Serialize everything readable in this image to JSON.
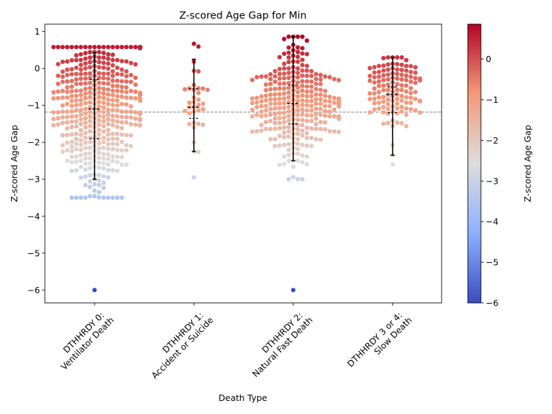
{
  "chart_data": {
    "type": "scatter",
    "subtype": "swarm",
    "title": "Z-scored Age Gap for Min",
    "xlabel": "Death Type",
    "ylabel": "Z-scored Age Gap",
    "categories": [
      [
        "DTHHRDY 0:",
        "Ventilator Death"
      ],
      [
        "DTHHRDY 1:",
        "Accident or Suicide"
      ],
      [
        "DTHHRDY 2:",
        "Natural Fast Death"
      ],
      [
        "DTHHRDY 3 or 4:",
        "Slow Death"
      ]
    ],
    "ylim": [
      -6.35,
      1.2
    ],
    "yticks": [
      1,
      0,
      -1,
      -2,
      -3,
      -4,
      -5,
      -6
    ],
    "ytick_labels": [
      "1",
      "0",
      "−1",
      "−2",
      "−3",
      "−4",
      "−5",
      "−6"
    ],
    "reference_line": -1.18,
    "colorbar": {
      "label": "Z-scored Age Gap",
      "range": [
        -6.0,
        0.86
      ],
      "ticks": [
        0,
        -1,
        -2,
        -3,
        -4,
        -5,
        -6
      ],
      "tick_labels": [
        "0",
        "−1",
        "−2",
        "−3",
        "−4",
        "−5",
        "−6"
      ],
      "colormap": "coolwarm"
    },
    "groups": [
      {
        "category": "DTHHRDY 0:\nVentilator Death",
        "n": 430,
        "min": -6.0,
        "q1": -1.9,
        "median": -1.1,
        "q3": -0.3,
        "max": 0.58,
        "whisker": [
          -3.0,
          0.42
        ],
        "spread": 0.85
      },
      {
        "category": "DTHHRDY 1:\nAccident or Suicide",
        "n": 35,
        "min": -2.95,
        "q1": -1.35,
        "median": -1.05,
        "q3": -0.55,
        "max": 0.67,
        "whisker": [
          -2.25,
          0.25
        ],
        "spread": 0.35
      },
      {
        "category": "DTHHRDY 2:\nNatural Fast Death",
        "n": 300,
        "min": -6.0,
        "q1": -1.5,
        "median": -0.95,
        "q3": -0.45,
        "max": 0.86,
        "whisker": [
          -2.5,
          0.86
        ],
        "spread": 0.85
      },
      {
        "category": "DTHHRDY 3 or 4:\nSlow Death",
        "n": 130,
        "min": -2.6,
        "q1": -1.2,
        "median": -0.7,
        "q3": -0.5,
        "max": 0.3,
        "whisker": [
          -2.35,
          0.3
        ],
        "spread": 0.5
      }
    ]
  }
}
